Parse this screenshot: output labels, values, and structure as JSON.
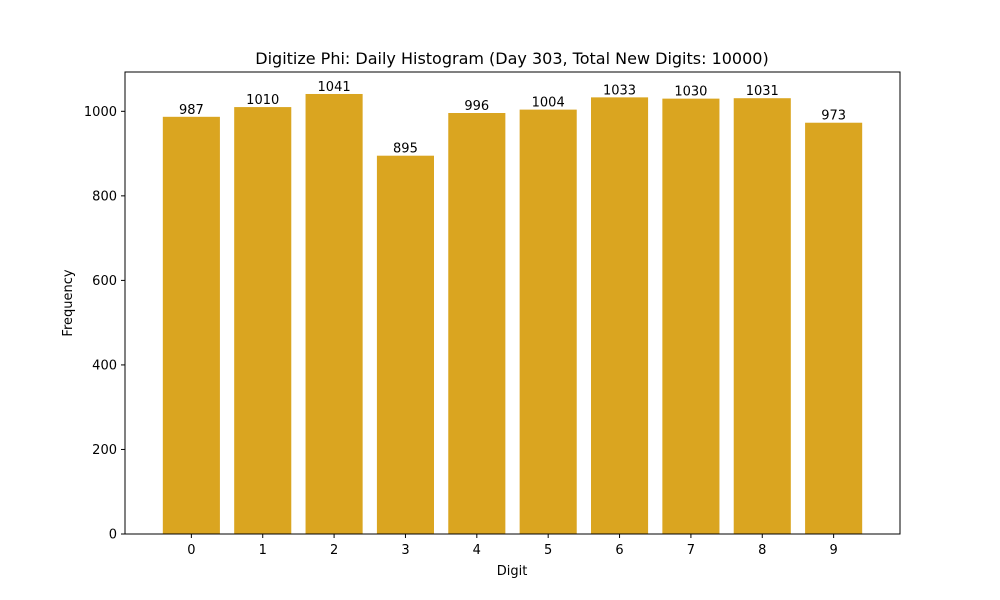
{
  "chart_data": {
    "type": "bar",
    "title": "Digitize Phi: Daily Histogram (Day 303, Total New Digits: 10000)",
    "xlabel": "Digit",
    "ylabel": "Frequency",
    "categories": [
      "0",
      "1",
      "2",
      "3",
      "4",
      "5",
      "6",
      "7",
      "8",
      "9"
    ],
    "values": [
      987,
      1010,
      1041,
      895,
      996,
      1004,
      1033,
      1030,
      1031,
      973
    ],
    "data_labels": [
      "987",
      "1010",
      "1041",
      "895",
      "996",
      "1004",
      "1033",
      "1030",
      "1031",
      "973"
    ],
    "ylim": [
      0,
      1093
    ],
    "y_ticks": [
      0,
      200,
      400,
      600,
      800,
      1000
    ],
    "y_tick_labels": [
      "0",
      "200",
      "400",
      "600",
      "800",
      "1000"
    ],
    "bar_color": "#DAA520",
    "grid": false,
    "legend": "none"
  }
}
